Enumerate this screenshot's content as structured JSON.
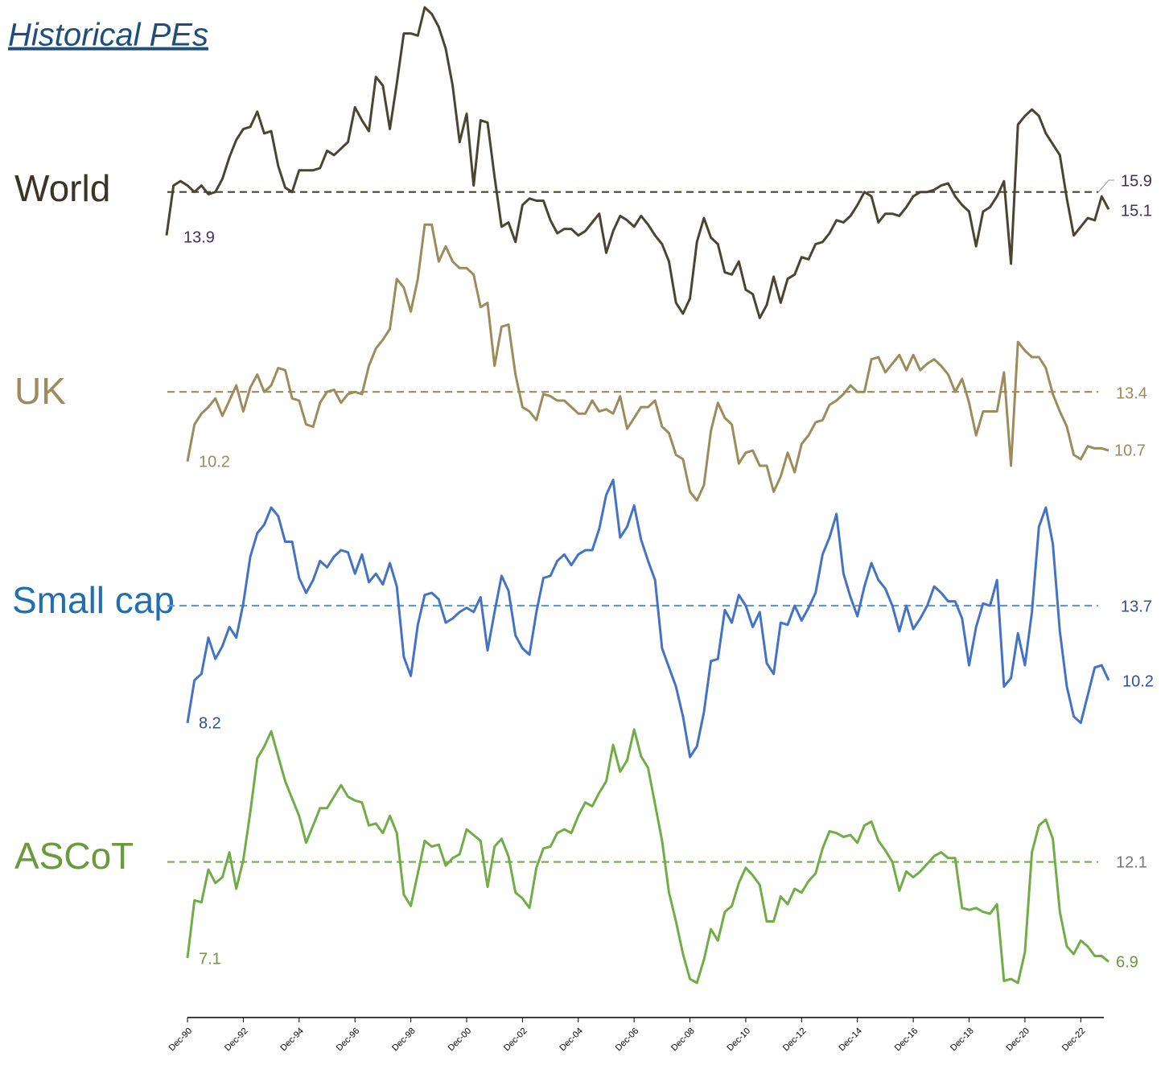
{
  "chart_data": {
    "type": "line",
    "title": "Historical PEs",
    "categories": [
      null,
      null,
      null,
      "Dec-90",
      null,
      null,
      null,
      null,
      null,
      null,
      null,
      "Dec-92",
      null,
      null,
      null,
      null,
      null,
      null,
      null,
      "Dec-94",
      null,
      null,
      null,
      null,
      null,
      null,
      null,
      "Dec-96",
      null,
      null,
      null,
      null,
      null,
      null,
      null,
      "Dec-98",
      null,
      null,
      null,
      null,
      null,
      null,
      null,
      "Dec-00",
      null,
      null,
      null,
      null,
      null,
      null,
      null,
      "Dec-02",
      null,
      null,
      null,
      null,
      null,
      null,
      null,
      "Dec-04",
      null,
      null,
      null,
      null,
      null,
      null,
      null,
      "Dec-06",
      null,
      null,
      null,
      null,
      null,
      null,
      null,
      "Dec-08",
      null,
      null,
      null,
      null,
      null,
      null,
      null,
      "Dec-10",
      null,
      null,
      null,
      null,
      null,
      null,
      null,
      "Dec-12",
      null,
      null,
      null,
      null,
      null,
      null,
      null,
      "Dec-14",
      null,
      null,
      null,
      null,
      null,
      null,
      null,
      "Dec-16",
      null,
      null,
      null,
      null,
      null,
      null,
      null,
      "Dec-18",
      null,
      null,
      null,
      null,
      null,
      null,
      null,
      "Dec-20",
      null,
      null,
      null,
      null,
      null,
      null,
      null,
      "Dec-22",
      null,
      null,
      null,
      null
    ],
    "series": [
      {
        "name": "World",
        "color": "#4a4530",
        "average": 15.9,
        "ylim": [
          9,
          25
        ],
        "values": [
          13.9,
          16.2,
          16.4,
          16.2,
          15.9,
          16.2,
          15.8,
          15.9,
          16.5,
          17.5,
          18.3,
          18.8,
          18.9,
          19.6,
          18.6,
          18.7,
          17.1,
          16.1,
          15.9,
          16.9,
          16.9,
          16.9,
          17.0,
          17.8,
          17.6,
          17.9,
          18.2,
          19.8,
          19.2,
          18.7,
          21.2,
          20.8,
          18.8,
          20.9,
          23.2,
          23.2,
          23.1,
          24.4,
          24.1,
          23.5,
          22.5,
          20.8,
          18.2,
          19.5,
          16.2,
          19.2,
          19.1,
          16.6,
          14.3,
          14.5,
          13.6,
          15.3,
          15.6,
          15.5,
          15.5,
          14.6,
          14.0,
          14.2,
          14.2,
          13.9,
          14.1,
          14.5,
          14.9,
          13.1,
          14.1,
          14.8,
          14.6,
          14.3,
          14.8,
          14.4,
          13.9,
          13.5,
          12.7,
          10.8,
          10.3,
          11.0,
          13.6,
          14.7,
          13.8,
          13.5,
          12.2,
          12.1,
          12.7,
          11.4,
          11.2,
          10.1,
          10.7,
          12.0,
          10.8,
          11.9,
          12.1,
          12.9,
          12.8,
          13.5,
          13.6,
          14.0,
          14.6,
          14.5,
          14.8,
          15.3,
          15.9,
          15.7,
          14.5,
          14.9,
          14.9,
          14.8,
          15.2,
          15.7,
          15.9,
          15.9,
          16.0,
          16.2,
          16.3,
          15.7,
          15.3,
          15.0,
          13.4,
          15.0,
          15.2,
          15.7,
          16.4,
          12.6,
          19.0,
          19.4,
          19.7,
          19.4,
          18.6,
          18.1,
          17.6,
          15.6,
          13.9,
          14.3,
          14.7,
          14.6,
          15.7,
          15.1
        ]
      },
      {
        "name": "UK",
        "color": "#9c8c5c",
        "average": 13.4,
        "ylim": [
          8,
          22
        ],
        "values": [
          null,
          null,
          null,
          10.2,
          11.9,
          12.4,
          12.7,
          13.1,
          12.3,
          13.0,
          13.7,
          12.5,
          13.6,
          14.2,
          13.4,
          13.7,
          14.5,
          14.4,
          13.1,
          13.0,
          11.9,
          11.8,
          12.9,
          13.4,
          13.5,
          12.9,
          13.3,
          13.4,
          13.3,
          14.6,
          15.4,
          15.8,
          16.3,
          18.6,
          18.2,
          17.1,
          18.6,
          21.1,
          21.1,
          19.4,
          20.1,
          19.4,
          19.1,
          19.1,
          18.8,
          17.3,
          17.5,
          14.6,
          16.4,
          16.5,
          14.2,
          12.7,
          12.5,
          12.1,
          13.3,
          13.2,
          13.0,
          13.0,
          12.7,
          12.4,
          12.4,
          13.0,
          12.5,
          12.6,
          12.4,
          13.2,
          11.7,
          12.2,
          12.7,
          12.7,
          13.0,
          11.8,
          11.5,
          10.5,
          10.3,
          8.8,
          8.4,
          9.1,
          11.6,
          12.9,
          12.2,
          11.9,
          10.1,
          10.6,
          10.7,
          10.0,
          10.0,
          8.8,
          9.5,
          10.6,
          9.7,
          11.0,
          11.4,
          12.0,
          12.1,
          12.8,
          13.0,
          13.3,
          13.7,
          13.4,
          13.4,
          14.9,
          15.0,
          14.3,
          14.7,
          15.1,
          14.4,
          15.1,
          14.4,
          14.7,
          14.9,
          14.6,
          14.2,
          13.4,
          14.0,
          12.9,
          11.4,
          12.5,
          12.5,
          12.5,
          14.3,
          10.0,
          15.7,
          15.3,
          15.0,
          15.0,
          14.5,
          13.3,
          12.5,
          11.8,
          10.5,
          10.3,
          10.9,
          10.8,
          10.8,
          10.7
        ]
      },
      {
        "name": "Small cap",
        "color": "#4472c4",
        "average": 13.7,
        "ylim": [
          6,
          20
        ],
        "values": [
          null,
          null,
          null,
          8.2,
          10.2,
          10.5,
          12.2,
          11.2,
          11.8,
          12.7,
          12.2,
          13.8,
          16.0,
          17.1,
          17.5,
          18.3,
          17.9,
          16.7,
          16.7,
          15.0,
          14.3,
          14.9,
          15.8,
          15.5,
          16.0,
          16.3,
          16.2,
          15.2,
          16.1,
          14.8,
          15.2,
          14.7,
          15.7,
          14.6,
          11.3,
          10.4,
          12.8,
          14.2,
          14.3,
          14.0,
          12.9,
          13.1,
          13.4,
          13.6,
          13.4,
          14.1,
          11.6,
          13.4,
          15.1,
          14.4,
          12.3,
          11.7,
          11.4,
          13.4,
          15.0,
          15.1,
          15.8,
          16.1,
          15.6,
          16.1,
          16.3,
          16.3,
          17.3,
          18.9,
          19.6,
          16.9,
          17.4,
          18.4,
          16.8,
          15.8,
          14.9,
          11.7,
          10.8,
          9.9,
          8.5,
          6.6,
          7.1,
          8.7,
          11.1,
          11.2,
          13.5,
          12.9,
          14.2,
          13.7,
          12.7,
          13.4,
          11.0,
          10.5,
          12.9,
          12.8,
          13.7,
          13.0,
          13.6,
          14.3,
          16.1,
          16.9,
          18.0,
          15.2,
          14.1,
          13.2,
          14.6,
          15.7,
          14.9,
          14.5,
          13.7,
          12.5,
          13.7,
          12.6,
          13.1,
          13.7,
          14.6,
          14.3,
          13.9,
          13.9,
          13.1,
          10.9,
          12.7,
          13.8,
          13.7,
          14.9,
          9.9,
          10.3,
          12.4,
          10.9,
          13.4,
          17.4,
          18.3,
          16.6,
          12.5,
          9.9,
          8.5,
          8.2,
          9.5,
          10.8,
          10.9,
          10.2
        ]
      },
      {
        "name": "ASCoT",
        "color": "#70ad47",
        "average": 12.1,
        "ylim": [
          5,
          20
        ],
        "values": [
          null,
          null,
          null,
          7.1,
          10.1,
          10.0,
          11.7,
          11.0,
          11.3,
          12.6,
          10.7,
          12.2,
          14.7,
          17.5,
          18.1,
          18.9,
          17.6,
          16.3,
          15.4,
          14.5,
          13.1,
          14.0,
          14.9,
          14.9,
          15.5,
          16.1,
          15.5,
          15.3,
          15.2,
          14.0,
          14.1,
          13.6,
          14.5,
          13.6,
          10.4,
          9.8,
          11.5,
          13.2,
          12.9,
          13.0,
          11.9,
          12.3,
          12.5,
          13.8,
          13.5,
          13.2,
          10.8,
          12.9,
          13.3,
          12.4,
          10.5,
          10.2,
          9.7,
          11.8,
          12.8,
          12.9,
          13.6,
          13.8,
          13.6,
          14.5,
          15.2,
          15.0,
          15.7,
          16.3,
          18.2,
          16.8,
          17.4,
          19.0,
          17.6,
          17.0,
          15.1,
          13.2,
          10.5,
          9.0,
          7.3,
          6.0,
          5.8,
          7.0,
          8.6,
          8.0,
          9.5,
          9.8,
          11.0,
          11.8,
          11.4,
          10.9,
          9.0,
          9.0,
          10.3,
          9.9,
          10.7,
          10.5,
          11.1,
          11.5,
          12.8,
          13.7,
          13.6,
          13.4,
          13.5,
          13.1,
          14.0,
          14.2,
          13.2,
          12.7,
          12.1,
          10.6,
          11.6,
          11.3,
          11.6,
          12.0,
          12.4,
          12.6,
          12.3,
          12.3,
          9.7,
          9.6,
          9.7,
          9.5,
          9.4,
          9.9,
          5.9,
          6.0,
          5.8,
          7.4,
          12.6,
          14.0,
          14.3,
          13.3,
          9.5,
          7.7,
          7.3,
          8.0,
          7.7,
          7.2,
          7.2,
          6.9
        ]
      }
    ]
  }
}
